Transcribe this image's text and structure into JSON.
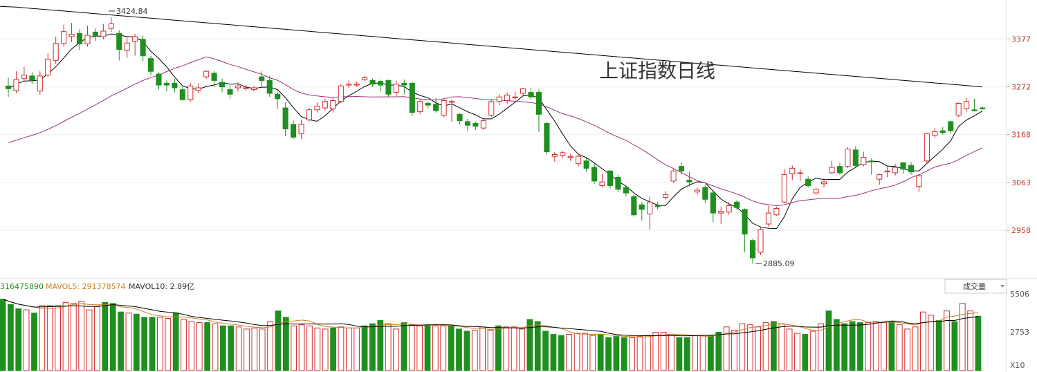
{
  "chart_data": {
    "type": "candlestick",
    "title": "上证指数日线",
    "price_axis": {
      "labels": [
        "3377",
        "3272",
        "3168",
        "3063",
        "2958"
      ],
      "ylim": [
        2860,
        3450
      ]
    },
    "annotations": {
      "high": "3424.84",
      "low": "2885.09"
    },
    "volume_panel": {
      "legend": [
        "316475890",
        "MAVOL5: 291378574",
        "MAVOL10: 2.89亿"
      ],
      "axis_labels": [
        "5506",
        "2753",
        "X10"
      ],
      "indicator_select": "成交量"
    },
    "colors": {
      "up": "#d42a2a",
      "down": "#1f8f1f",
      "ma5": "#000000",
      "ma20": "#a0307a",
      "ma120": "#000000",
      "mavol5": "#d08020"
    },
    "candles": [
      [
        3274,
        3268,
        3292,
        3250
      ],
      [
        3264,
        3288,
        3306,
        3258
      ],
      [
        3290,
        3298,
        3316,
        3284
      ],
      [
        3296,
        3287,
        3304,
        3278
      ],
      [
        3263,
        3296,
        3306,
        3255
      ],
      [
        3298,
        3333,
        3346,
        3294
      ],
      [
        3330,
        3367,
        3382,
        3322
      ],
      [
        3367,
        3393,
        3408,
        3360
      ],
      [
        3382,
        3387,
        3412,
        3370
      ],
      [
        3389,
        3366,
        3398,
        3352
      ],
      [
        3366,
        3385,
        3406,
        3360
      ],
      [
        3392,
        3384,
        3400,
        3372
      ],
      [
        3382,
        3394,
        3410,
        3376
      ],
      [
        3400,
        3410,
        3424,
        3392
      ],
      [
        3389,
        3354,
        3396,
        3330
      ],
      [
        3352,
        3368,
        3380,
        3336
      ],
      [
        3372,
        3382,
        3388,
        3340
      ],
      [
        3376,
        3340,
        3384,
        3328
      ],
      [
        3334,
        3306,
        3340,
        3298
      ],
      [
        3300,
        3276,
        3304,
        3266
      ],
      [
        3280,
        3276,
        3286,
        3262
      ],
      [
        3280,
        3270,
        3290,
        3260
      ],
      [
        3266,
        3244,
        3272,
        3242
      ],
      [
        3244,
        3274,
        3280,
        3240
      ],
      [
        3264,
        3270,
        3280,
        3258
      ],
      [
        3294,
        3306,
        3308,
        3290
      ],
      [
        3302,
        3286,
        3306,
        3272
      ],
      [
        3282,
        3272,
        3290,
        3260
      ],
      [
        3266,
        3256,
        3276,
        3246
      ],
      [
        3270,
        3274,
        3282,
        3262
      ],
      [
        3268,
        3270,
        3276,
        3264
      ],
      [
        3266,
        3270,
        3274,
        3262
      ],
      [
        3294,
        3286,
        3306,
        3270
      ],
      [
        3286,
        3258,
        3296,
        3250
      ],
      [
        3256,
        3246,
        3262,
        3224
      ],
      [
        3226,
        3180,
        3238,
        3164
      ],
      [
        3190,
        3162,
        3198,
        3158
      ],
      [
        3170,
        3190,
        3200,
        3158
      ],
      [
        3200,
        3222,
        3226,
        3196
      ],
      [
        3222,
        3230,
        3238,
        3216
      ],
      [
        3226,
        3240,
        3246,
        3220
      ],
      [
        3224,
        3242,
        3248,
        3216
      ],
      [
        3240,
        3274,
        3278,
        3236
      ],
      [
        3276,
        3278,
        3286,
        3270
      ],
      [
        3276,
        3278,
        3284,
        3272
      ],
      [
        3288,
        3292,
        3296,
        3284
      ],
      [
        3286,
        3278,
        3290,
        3272
      ],
      [
        3284,
        3276,
        3288,
        3262
      ],
      [
        3286,
        3256,
        3288,
        3250
      ],
      [
        3260,
        3278,
        3286,
        3252
      ],
      [
        3280,
        3276,
        3288,
        3256
      ],
      [
        3280,
        3216,
        3282,
        3208
      ],
      [
        3218,
        3240,
        3244,
        3212
      ],
      [
        3236,
        3232,
        3240,
        3226
      ],
      [
        3234,
        3220,
        3248,
        3216
      ],
      [
        3210,
        3242,
        3246,
        3206
      ],
      [
        3240,
        3240,
        3244,
        3196
      ],
      [
        3212,
        3198,
        3214,
        3190
      ],
      [
        3196,
        3188,
        3202,
        3176
      ],
      [
        3192,
        3186,
        3196,
        3178
      ],
      [
        3182,
        3198,
        3204,
        3178
      ],
      [
        3210,
        3240,
        3244,
        3206
      ],
      [
        3240,
        3250,
        3256,
        3232
      ],
      [
        3242,
        3254,
        3260,
        3234
      ],
      [
        3248,
        3250,
        3262,
        3244
      ],
      [
        3258,
        3268,
        3270,
        3254
      ],
      [
        3260,
        3250,
        3270,
        3244
      ],
      [
        3260,
        3212,
        3266,
        3174
      ],
      [
        3192,
        3130,
        3196,
        3124
      ],
      [
        3120,
        3124,
        3130,
        3108
      ],
      [
        3122,
        3128,
        3132,
        3116
      ],
      [
        3118,
        3120,
        3126,
        3110
      ],
      [
        3104,
        3120,
        3126,
        3098
      ],
      [
        3110,
        3094,
        3116,
        3086
      ],
      [
        3096,
        3066,
        3104,
        3060
      ],
      [
        3056,
        3064,
        3082,
        3052
      ],
      [
        3088,
        3056,
        3090,
        3050
      ],
      [
        3074,
        3048,
        3080,
        3042
      ],
      [
        3052,
        3040,
        3056,
        3032
      ],
      [
        3032,
        2992,
        3036,
        2988
      ],
      [
        3014,
        3004,
        3020,
        2980
      ],
      [
        2994,
        3020,
        3032,
        2960
      ],
      [
        3012,
        3010,
        3020,
        3004
      ],
      [
        3030,
        3036,
        3044,
        3026
      ],
      [
        3066,
        3088,
        3092,
        3062
      ],
      [
        3098,
        3088,
        3106,
        3080
      ],
      [
        3068,
        3064,
        3086,
        3054
      ],
      [
        3042,
        3046,
        3052,
        3036
      ],
      [
        3052,
        3026,
        3058,
        3018
      ],
      [
        3040,
        2996,
        3042,
        2976
      ],
      [
        2996,
        3000,
        3010,
        2972
      ],
      [
        2998,
        3012,
        3020,
        2992
      ],
      [
        3020,
        3008,
        3024,
        3002
      ],
      [
        3004,
        2950,
        3006,
        2910
      ],
      [
        2936,
        2898,
        2940,
        2885
      ],
      [
        2910,
        2960,
        2964,
        2904
      ],
      [
        2972,
        2996,
        3012,
        2966
      ],
      [
        2992,
        3006,
        3010,
        2990
      ],
      [
        3020,
        3080,
        3092,
        3018
      ],
      [
        3082,
        3094,
        3100,
        3068
      ],
      [
        3084,
        3084,
        3092,
        3066
      ],
      [
        3070,
        3056,
        3076,
        3052
      ],
      [
        3040,
        3048,
        3052,
        3036
      ],
      [
        3060,
        3064,
        3072,
        3052
      ],
      [
        3084,
        3096,
        3110,
        3082
      ],
      [
        3098,
        3084,
        3106,
        3080
      ],
      [
        3098,
        3136,
        3140,
        3094
      ],
      [
        3134,
        3100,
        3142,
        3094
      ],
      [
        3102,
        3118,
        3130,
        3098
      ],
      [
        3110,
        3108,
        3116,
        3080
      ],
      [
        3070,
        3080,
        3082,
        3058
      ],
      [
        3086,
        3088,
        3100,
        3074
      ],
      [
        3084,
        3096,
        3104,
        3078
      ],
      [
        3106,
        3092,
        3108,
        3082
      ],
      [
        3100,
        3086,
        3108,
        3080
      ],
      [
        3054,
        3078,
        3080,
        3042
      ],
      [
        3110,
        3170,
        3172,
        3104
      ],
      [
        3166,
        3174,
        3182,
        3160
      ],
      [
        3176,
        3172,
        3184,
        3168
      ],
      [
        3196,
        3176,
        3198,
        3170
      ],
      [
        3210,
        3236,
        3238,
        3206
      ],
      [
        3224,
        3240,
        3248,
        3218
      ],
      [
        3222,
        3220,
        3246,
        3218
      ],
      [
        3226,
        3224,
        3230,
        3222
      ]
    ],
    "volumes": [
      [
        6.7,
        0
      ],
      [
        6.2,
        0
      ],
      [
        5.8,
        0
      ],
      [
        5.7,
        1
      ],
      [
        5.4,
        0
      ],
      [
        6.1,
        1
      ],
      [
        6.1,
        1
      ],
      [
        6.1,
        1
      ],
      [
        6.4,
        1
      ],
      [
        6.3,
        1
      ],
      [
        6.5,
        1
      ],
      [
        5.7,
        1
      ],
      [
        6.0,
        1
      ],
      [
        6.4,
        0
      ],
      [
        6.3,
        0
      ],
      [
        5.5,
        0
      ],
      [
        5.4,
        1
      ],
      [
        5.3,
        0
      ],
      [
        5.0,
        0
      ],
      [
        5.0,
        0
      ],
      [
        5.0,
        1
      ],
      [
        4.9,
        1
      ],
      [
        5.4,
        0
      ],
      [
        4.8,
        1
      ],
      [
        4.6,
        1
      ],
      [
        4.5,
        1
      ],
      [
        4.5,
        0
      ],
      [
        4.4,
        1
      ],
      [
        4.2,
        0
      ],
      [
        4.2,
        0
      ],
      [
        4.1,
        1
      ],
      [
        3.9,
        1
      ],
      [
        4.0,
        1
      ],
      [
        3.9,
        1
      ],
      [
        4.6,
        1
      ],
      [
        5.6,
        0
      ],
      [
        5.0,
        0
      ],
      [
        4.2,
        1
      ],
      [
        4.3,
        1
      ],
      [
        4.2,
        1
      ],
      [
        4.0,
        1
      ],
      [
        3.9,
        1
      ],
      [
        4.0,
        0
      ],
      [
        4.1,
        1
      ],
      [
        4.0,
        1
      ],
      [
        4.0,
        1
      ],
      [
        4.2,
        0
      ],
      [
        4.4,
        0
      ],
      [
        4.7,
        0
      ],
      [
        4.4,
        1
      ],
      [
        3.9,
        1
      ],
      [
        4.5,
        0
      ],
      [
        4.3,
        1
      ],
      [
        4.2,
        1
      ],
      [
        4.3,
        0
      ],
      [
        4.2,
        1
      ],
      [
        4.2,
        1
      ],
      [
        4.2,
        0
      ],
      [
        3.9,
        0
      ],
      [
        3.7,
        0
      ],
      [
        3.8,
        1
      ],
      [
        4.1,
        1
      ],
      [
        3.8,
        1
      ],
      [
        4.2,
        0
      ],
      [
        4.1,
        1
      ],
      [
        4.1,
        1
      ],
      [
        3.9,
        1
      ],
      [
        4.8,
        0
      ],
      [
        4.6,
        0
      ],
      [
        3.7,
        0
      ],
      [
        3.4,
        0
      ],
      [
        3.3,
        0
      ],
      [
        3.4,
        1
      ],
      [
        3.5,
        1
      ],
      [
        3.5,
        1
      ],
      [
        3.3,
        1
      ],
      [
        3.4,
        0
      ],
      [
        3.1,
        0
      ],
      [
        3.2,
        0
      ],
      [
        3.1,
        0
      ],
      [
        3.1,
        1
      ],
      [
        3.2,
        1
      ],
      [
        3.3,
        1
      ],
      [
        3.6,
        1
      ],
      [
        3.6,
        1
      ],
      [
        3.4,
        1
      ],
      [
        3.1,
        0
      ],
      [
        3.1,
        0
      ],
      [
        3.3,
        1
      ],
      [
        3.3,
        1
      ],
      [
        3.3,
        0
      ],
      [
        3.6,
        0
      ],
      [
        4.1,
        1
      ],
      [
        3.8,
        1
      ],
      [
        4.4,
        1
      ],
      [
        4.3,
        1
      ],
      [
        4.1,
        1
      ],
      [
        4.5,
        1
      ],
      [
        4.6,
        0
      ],
      [
        4.4,
        1
      ],
      [
        3.9,
        1
      ],
      [
        3.5,
        1
      ],
      [
        3.4,
        0
      ],
      [
        3.7,
        1
      ],
      [
        4.4,
        1
      ],
      [
        5.6,
        0
      ],
      [
        4.8,
        0
      ],
      [
        4.4,
        0
      ],
      [
        4.6,
        0
      ],
      [
        4.5,
        0
      ],
      [
        4.5,
        1
      ],
      [
        4.6,
        1
      ],
      [
        4.5,
        1
      ],
      [
        4.6,
        0
      ],
      [
        4.3,
        1
      ],
      [
        3.9,
        1
      ],
      [
        4.1,
        1
      ],
      [
        5.5,
        1
      ],
      [
        5.2,
        1
      ],
      [
        4.7,
        0
      ],
      [
        5.6,
        1
      ],
      [
        4.6,
        0
      ],
      [
        6.3,
        1
      ],
      [
        5.6,
        1
      ],
      [
        5.1,
        0
      ]
    ]
  }
}
